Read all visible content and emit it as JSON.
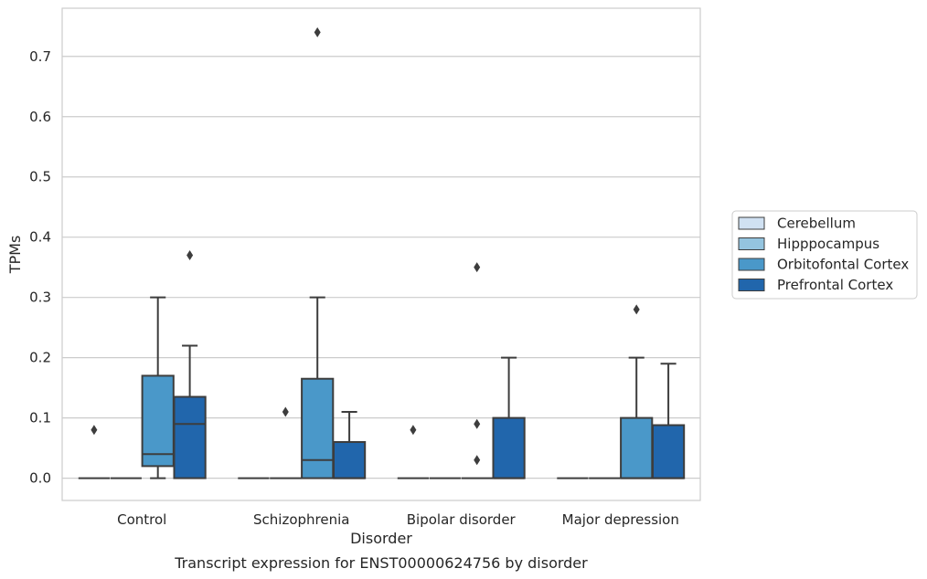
{
  "chart_data": {
    "type": "box",
    "caption": "Transcript expression for ENST00000624756 by disorder",
    "xlabel": "Disorder",
    "ylabel": "TPMs",
    "ylim": [
      -0.037,
      0.78
    ],
    "yticks": [
      "0.0",
      "0.1",
      "0.2",
      "0.3",
      "0.4",
      "0.5",
      "0.6",
      "0.7"
    ],
    "grid": "horizontal",
    "legend_position": "right",
    "categories": [
      "Control",
      "Schizophrenia",
      "Bipolar disorder",
      "Major depression"
    ],
    "series": [
      {
        "name": "Cerebellum",
        "color": "#d0e1f2",
        "boxes": [
          {
            "q1": 0,
            "median": 0,
            "q3": 0,
            "whislo": 0,
            "whishi": 0,
            "fliers": [
              0.08
            ]
          },
          {
            "q1": 0,
            "median": 0,
            "q3": 0,
            "whislo": 0,
            "whishi": 0,
            "fliers": []
          },
          {
            "q1": 0,
            "median": 0,
            "q3": 0,
            "whislo": 0,
            "whishi": 0,
            "fliers": [
              0.08
            ]
          },
          {
            "q1": 0,
            "median": 0,
            "q3": 0,
            "whislo": 0,
            "whishi": 0,
            "fliers": []
          }
        ]
      },
      {
        "name": "Hipppocampus",
        "color": "#94c4df",
        "boxes": [
          {
            "q1": 0,
            "median": 0,
            "q3": 0,
            "whislo": 0,
            "whishi": 0,
            "fliers": []
          },
          {
            "q1": 0,
            "median": 0,
            "q3": 0,
            "whislo": 0,
            "whishi": 0,
            "fliers": [
              0.11
            ]
          },
          {
            "q1": 0,
            "median": 0,
            "q3": 0,
            "whislo": 0,
            "whishi": 0,
            "fliers": []
          },
          {
            "q1": 0,
            "median": 0,
            "q3": 0,
            "whislo": 0,
            "whishi": 0,
            "fliers": []
          }
        ]
      },
      {
        "name": "Orbitofontal Cortex",
        "color": "#4a98c9",
        "boxes": [
          {
            "q1": 0.02,
            "median": 0.04,
            "q3": 0.17,
            "whislo": 0,
            "whishi": 0.3,
            "fliers": []
          },
          {
            "q1": 0,
            "median": 0.03,
            "q3": 0.165,
            "whislo": 0,
            "whishi": 0.3,
            "fliers": [
              0.74
            ]
          },
          {
            "q1": 0,
            "median": 0,
            "q3": 0,
            "whislo": 0,
            "whishi": 0,
            "fliers": [
              0.03,
              0.09,
              0.35
            ]
          },
          {
            "q1": 0,
            "median": 0,
            "q3": 0.1,
            "whislo": 0,
            "whishi": 0.2,
            "fliers": [
              0.28
            ]
          }
        ]
      },
      {
        "name": "Prefrontal Cortex",
        "color": "#2166ac",
        "boxes": [
          {
            "q1": 0,
            "median": 0.09,
            "q3": 0.135,
            "whislo": 0,
            "whishi": 0.22,
            "fliers": [
              0.37
            ]
          },
          {
            "q1": 0,
            "median": 0,
            "q3": 0.06,
            "whislo": 0,
            "whishi": 0.11,
            "fliers": []
          },
          {
            "q1": 0,
            "median": 0,
            "q3": 0.1,
            "whislo": 0,
            "whishi": 0.2,
            "fliers": []
          },
          {
            "q1": 0,
            "median": 0,
            "q3": 0.088,
            "whislo": 0,
            "whishi": 0.19,
            "fliers": []
          }
        ]
      }
    ]
  }
}
